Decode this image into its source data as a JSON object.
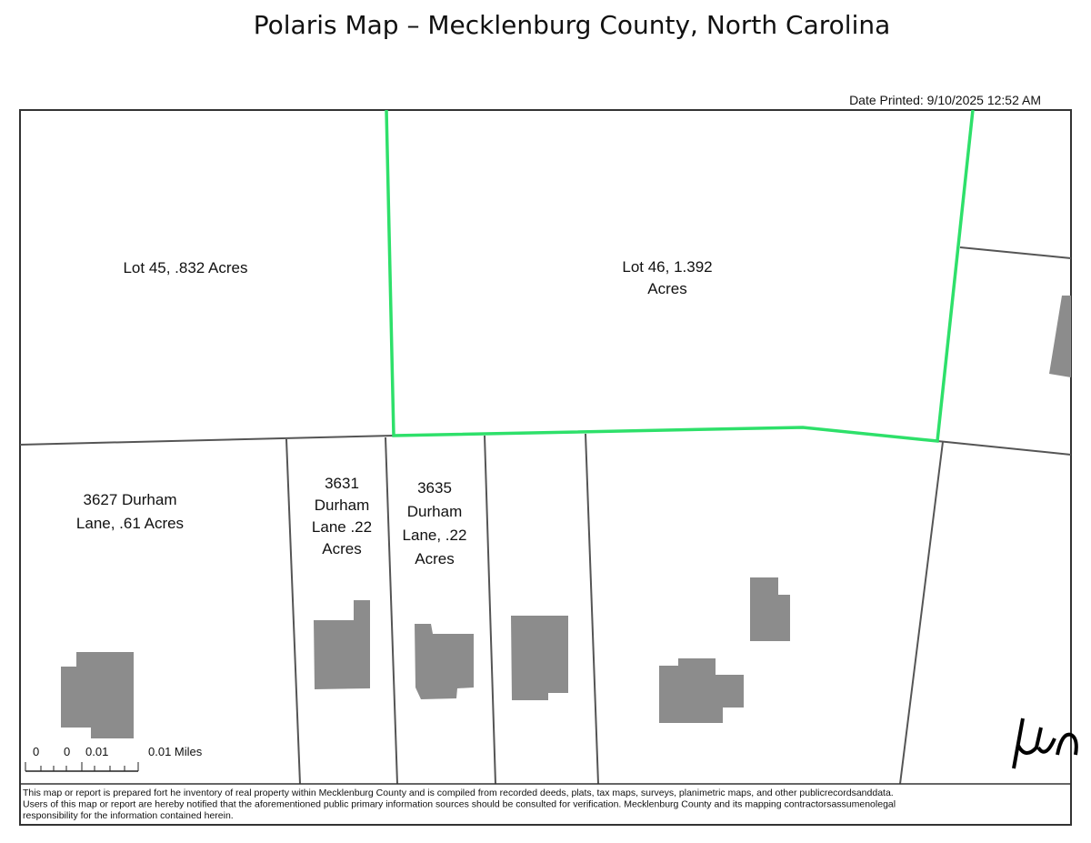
{
  "header": {
    "title": "Polaris Map – Mecklenburg County, North Carolina",
    "date_printed": "Date Printed: 9/10/2025 12:52 AM"
  },
  "parcels": [
    {
      "lines": [
        "Lot 45, .832 Acres"
      ]
    },
    {
      "lines": [
        "Lot 46, 1.392",
        "Acres"
      ]
    },
    {
      "lines": [
        "3627 Durham",
        "Lane, .61 Acres"
      ]
    },
    {
      "lines": [
        "3631",
        "Durham",
        "Lane .22",
        "Acres"
      ]
    },
    {
      "lines": [
        "3635",
        "Durham",
        "Lane, .22",
        "Acres"
      ]
    }
  ],
  "scale_bar": {
    "labels": [
      "0",
      "0",
      "0.01",
      "0.01 Miles"
    ]
  },
  "disclaimer": {
    "lines": [
      "This map or report is prepared fort he inventory of real property within Mecklenburg County and is compiled from recorded deeds, plats, tax maps, surveys, planimetric maps, and other publicrecordsanddata.",
      "Users of this map or report are hereby notified that the aforementioned public primary information sources should be consulted for verification. Mecklenburg County and its mapping contractorsassumenolegal",
      "responsibility for the information contained herein."
    ]
  }
}
